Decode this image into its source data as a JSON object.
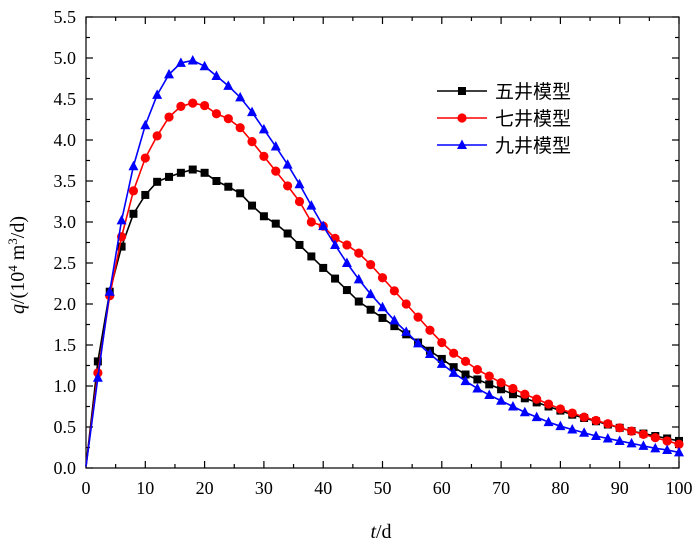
{
  "chart_data": {
    "type": "line",
    "title": "",
    "xlabel_italic": "t",
    "xlabel_unit": "/d",
    "ylabel_italic": "q",
    "ylabel_open": "/(10",
    "ylabel_sup1": "4",
    "ylabel_mid": " m",
    "ylabel_sup2": "3",
    "ylabel_close": "/d)",
    "xlim": [
      0,
      100
    ],
    "ylim": [
      0,
      5.5
    ],
    "xticks": [
      0,
      10,
      20,
      30,
      40,
      50,
      60,
      70,
      80,
      90,
      100
    ],
    "xtick_labels": [
      "0",
      "10",
      "20",
      "30",
      "40",
      "50",
      "60",
      "70",
      "80",
      "90",
      "100"
    ],
    "yticks": [
      0,
      0.5,
      1.0,
      1.5,
      2.0,
      2.5,
      3.0,
      3.5,
      4.0,
      4.5,
      5.0,
      5.5
    ],
    "ytick_labels": [
      "0.0",
      "0.5",
      "1.0",
      "1.5",
      "2.0",
      "2.5",
      "3.0",
      "3.5",
      "4.0",
      "4.5",
      "5.0",
      "5.5"
    ],
    "grid": false,
    "legend_position": "top-right",
    "x": [
      0,
      2,
      4,
      6,
      8,
      10,
      12,
      14,
      16,
      18,
      20,
      22,
      24,
      26,
      28,
      30,
      32,
      34,
      36,
      38,
      40,
      42,
      44,
      46,
      48,
      50,
      52,
      54,
      56,
      58,
      60,
      62,
      64,
      66,
      68,
      70,
      72,
      74,
      76,
      78,
      80,
      82,
      84,
      86,
      88,
      90,
      92,
      94,
      96,
      98,
      100
    ],
    "series": [
      {
        "name": "五井模型",
        "color": "#000000",
        "marker": "square",
        "values": [
          0.02,
          1.3,
          2.15,
          2.7,
          3.1,
          3.33,
          3.49,
          3.55,
          3.6,
          3.64,
          3.6,
          3.5,
          3.43,
          3.35,
          3.2,
          3.07,
          2.98,
          2.86,
          2.72,
          2.58,
          2.44,
          2.31,
          2.17,
          2.03,
          1.93,
          1.83,
          1.73,
          1.63,
          1.53,
          1.43,
          1.33,
          1.23,
          1.14,
          1.08,
          1.02,
          0.96,
          0.9,
          0.85,
          0.8,
          0.75,
          0.7,
          0.65,
          0.61,
          0.57,
          0.53,
          0.49,
          0.45,
          0.42,
          0.39,
          0.36,
          0.33
        ]
      },
      {
        "name": "七井模型",
        "color": "#ff0000",
        "marker": "circle",
        "values": [
          0.02,
          1.16,
          2.1,
          2.82,
          3.38,
          3.78,
          4.05,
          4.28,
          4.41,
          4.45,
          4.42,
          4.32,
          4.26,
          4.15,
          3.98,
          3.8,
          3.62,
          3.44,
          3.25,
          3.0,
          2.95,
          2.8,
          2.72,
          2.62,
          2.48,
          2.32,
          2.16,
          2.0,
          1.84,
          1.68,
          1.53,
          1.4,
          1.3,
          1.2,
          1.12,
          1.04,
          0.97,
          0.9,
          0.84,
          0.78,
          0.72,
          0.67,
          0.62,
          0.58,
          0.54,
          0.49,
          0.45,
          0.41,
          0.37,
          0.33,
          0.29
        ]
      },
      {
        "name": "九井模型",
        "color": "#0000ff",
        "marker": "triangle",
        "values": [
          0.02,
          1.1,
          2.15,
          3.02,
          3.68,
          4.18,
          4.55,
          4.8,
          4.94,
          4.97,
          4.9,
          4.78,
          4.66,
          4.52,
          4.34,
          4.13,
          3.92,
          3.7,
          3.46,
          3.2,
          2.95,
          2.72,
          2.5,
          2.3,
          2.12,
          1.96,
          1.8,
          1.66,
          1.52,
          1.39,
          1.27,
          1.16,
          1.06,
          0.97,
          0.89,
          0.82,
          0.75,
          0.68,
          0.62,
          0.56,
          0.51,
          0.47,
          0.43,
          0.39,
          0.36,
          0.33,
          0.3,
          0.27,
          0.24,
          0.22,
          0.19
        ]
      }
    ]
  }
}
